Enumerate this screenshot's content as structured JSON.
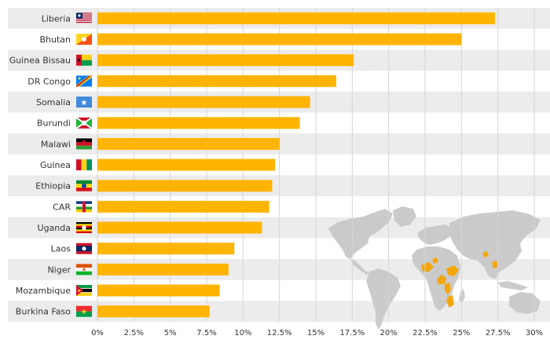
{
  "chart_data": {
    "type": "bar",
    "orientation": "horizontal",
    "categories": [
      "Liberia",
      "Bhutan",
      "Guinea Bissau",
      "DR Congo",
      "Somalia",
      "Burundi",
      "Malawi",
      "Guinea",
      "Ethiopia",
      "CAR",
      "Uganda",
      "Laos",
      "Niger",
      "Mozambique",
      "Burkina Faso"
    ],
    "values": [
      27.3,
      25.0,
      17.6,
      16.4,
      14.6,
      13.9,
      12.5,
      12.2,
      12.0,
      11.8,
      11.3,
      9.4,
      9.0,
      8.4,
      7.7
    ],
    "xlim": [
      0,
      30
    ],
    "tick_values": [
      0,
      2.5,
      5,
      7.5,
      10,
      12.5,
      15,
      17.5,
      20,
      22.5,
      25,
      27.5,
      30
    ],
    "tick_labels": [
      "0%",
      "2.5%",
      "5%",
      "7.5%",
      "10%",
      "12.5%",
      "15%",
      "17.5%",
      "20%",
      "22.5%",
      "25%",
      "27.5%",
      "30%"
    ],
    "grid": true,
    "flag_icons": [
      "liberia-flag-icon",
      "bhutan-flag-icon",
      "guinea-bissau-flag-icon",
      "dr-congo-flag-icon",
      "somalia-flag-icon",
      "burundi-flag-icon",
      "malawi-flag-icon",
      "guinea-flag-icon",
      "ethiopia-flag-icon",
      "car-flag-icon",
      "uganda-flag-icon",
      "laos-flag-icon",
      "niger-flag-icon",
      "mozambique-flag-icon",
      "burkina-faso-flag-icon"
    ],
    "background_graphic": "world-map-icon"
  },
  "colors": {
    "bar": "#ffb400",
    "stripe": "#ececec",
    "grid": "#d6d6d6",
    "label": "#333333",
    "map": "#c9c9c9",
    "map_highlight": "#f4a300"
  }
}
